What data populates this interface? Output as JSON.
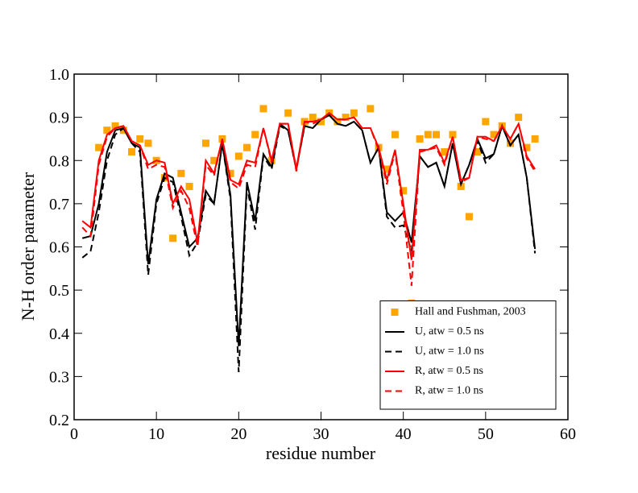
{
  "chart_data": {
    "type": "line",
    "xlabel": "residue number",
    "ylabel": "N-H order parameter",
    "xlim": [
      0,
      60
    ],
    "ylim": [
      0.2,
      1.0
    ],
    "xticks": [
      0,
      10,
      20,
      30,
      40,
      50,
      60
    ],
    "yticks": [
      0.2,
      0.3,
      0.4,
      0.5,
      0.6,
      0.7,
      0.8,
      0.9,
      {
        "value": 1.0,
        "label": "1.0"
      }
    ],
    "legend": "lower right",
    "series": [
      {
        "name": "Hall and Fushman, 2003",
        "color": "#ffa500",
        "style": "markers",
        "x": [
          3,
          4,
          5,
          6,
          7,
          8,
          9,
          10,
          11,
          12,
          13,
          14,
          16,
          17,
          18,
          19,
          20,
          21,
          22,
          23,
          24,
          26,
          28,
          29,
          30,
          31,
          32,
          33,
          34,
          36,
          37,
          38,
          39,
          40,
          41,
          42,
          43,
          44,
          45,
          46,
          47,
          48,
          49,
          50,
          51,
          52,
          53,
          54,
          55,
          56
        ],
        "values": [
          0.83,
          0.87,
          0.88,
          0.87,
          0.82,
          0.85,
          0.84,
          0.8,
          0.76,
          0.62,
          0.77,
          0.74,
          0.84,
          0.8,
          0.85,
          0.77,
          0.81,
          0.83,
          0.86,
          0.92,
          0.8,
          0.91,
          0.89,
          0.9,
          0.89,
          0.91,
          0.89,
          0.9,
          0.91,
          0.92,
          0.83,
          0.78,
          0.86,
          0.73,
          0.47,
          0.85,
          0.86,
          0.86,
          0.82,
          0.86,
          0.74,
          0.67,
          0.82,
          0.89,
          0.86,
          0.88,
          0.84,
          0.9,
          0.83,
          0.85
        ]
      },
      {
        "name": "U, atw = 0.5 ns",
        "color": "#000000",
        "style": "solid",
        "x": [
          1,
          2,
          3,
          4,
          5,
          6,
          7,
          8,
          9,
          10,
          11,
          12,
          13,
          14,
          15,
          16,
          17,
          18,
          19,
          20,
          21,
          22,
          23,
          24,
          25,
          26,
          27,
          28,
          29,
          30,
          31,
          32,
          33,
          34,
          35,
          36,
          37,
          38,
          39,
          40,
          41,
          42,
          43,
          44,
          45,
          46,
          47,
          48,
          49,
          50,
          51,
          52,
          53,
          54,
          55,
          56
        ],
        "values": [
          0.62,
          0.625,
          0.7,
          0.82,
          0.87,
          0.875,
          0.84,
          0.83,
          0.56,
          0.71,
          0.77,
          0.76,
          0.68,
          0.6,
          0.62,
          0.73,
          0.7,
          0.84,
          0.72,
          0.37,
          0.75,
          0.66,
          0.815,
          0.785,
          0.885,
          0.87,
          0.78,
          0.88,
          0.875,
          0.895,
          0.905,
          0.885,
          0.88,
          0.89,
          0.87,
          0.795,
          0.83,
          0.68,
          0.66,
          0.68,
          0.61,
          0.81,
          0.785,
          0.795,
          0.74,
          0.84,
          0.745,
          0.79,
          0.85,
          0.805,
          0.815,
          0.88,
          0.835,
          0.86,
          0.76,
          0.595
        ]
      },
      {
        "name": "U, atw = 1.0 ns",
        "color": "#000000",
        "style": "dashed",
        "x": [
          1,
          2,
          3,
          4,
          5,
          6,
          7,
          8,
          9,
          10,
          11,
          12,
          13,
          14,
          15,
          16,
          17,
          18,
          19,
          20,
          21,
          22,
          23,
          24,
          25,
          26,
          27,
          28,
          29,
          30,
          31,
          32,
          33,
          34,
          35,
          36,
          37,
          38,
          39,
          40,
          41,
          42,
          43,
          44,
          45,
          46,
          47,
          48,
          49,
          50,
          51,
          52,
          53,
          54,
          55,
          56
        ],
        "values": [
          0.575,
          0.59,
          0.68,
          0.8,
          0.86,
          0.875,
          0.84,
          0.82,
          0.535,
          0.7,
          0.76,
          0.75,
          0.67,
          0.58,
          0.61,
          0.72,
          0.7,
          0.84,
          0.71,
          0.31,
          0.74,
          0.64,
          0.81,
          0.78,
          0.88,
          0.87,
          0.78,
          0.88,
          0.875,
          0.895,
          0.905,
          0.885,
          0.88,
          0.89,
          0.87,
          0.795,
          0.83,
          0.67,
          0.645,
          0.65,
          0.59,
          0.81,
          0.785,
          0.795,
          0.74,
          0.84,
          0.745,
          0.79,
          0.845,
          0.795,
          0.815,
          0.88,
          0.835,
          0.86,
          0.76,
          0.585
        ]
      },
      {
        "name": "R, atw = 0.5 ns",
        "color": "#ff0000",
        "style": "solid",
        "x": [
          1,
          2,
          3,
          4,
          5,
          6,
          7,
          8,
          9,
          10,
          11,
          12,
          13,
          14,
          15,
          16,
          17,
          18,
          19,
          20,
          21,
          22,
          23,
          24,
          25,
          26,
          27,
          28,
          29,
          30,
          31,
          32,
          33,
          34,
          35,
          36,
          37,
          38,
          39,
          40,
          41,
          42,
          43,
          44,
          45,
          46,
          47,
          48,
          49,
          50,
          51,
          52,
          53,
          54,
          55,
          56
        ],
        "values": [
          0.66,
          0.645,
          0.8,
          0.86,
          0.875,
          0.88,
          0.845,
          0.835,
          0.79,
          0.8,
          0.795,
          0.7,
          0.74,
          0.71,
          0.61,
          0.8,
          0.77,
          0.85,
          0.755,
          0.745,
          0.8,
          0.795,
          0.875,
          0.8,
          0.885,
          0.885,
          0.78,
          0.89,
          0.89,
          0.895,
          0.91,
          0.895,
          0.895,
          0.9,
          0.875,
          0.875,
          0.83,
          0.755,
          0.825,
          0.7,
          0.57,
          0.825,
          0.825,
          0.835,
          0.795,
          0.855,
          0.755,
          0.76,
          0.855,
          0.855,
          0.845,
          0.88,
          0.85,
          0.885,
          0.81,
          0.78
        ]
      },
      {
        "name": "R, atw = 1.0 ns",
        "color": "#ff0000",
        "style": "dashed",
        "x": [
          1,
          2,
          3,
          4,
          5,
          6,
          7,
          8,
          9,
          10,
          11,
          12,
          13,
          14,
          15,
          16,
          17,
          18,
          19,
          20,
          21,
          22,
          23,
          24,
          25,
          26,
          27,
          28,
          29,
          30,
          31,
          32,
          33,
          34,
          35,
          36,
          37,
          38,
          39,
          40,
          41,
          42,
          43,
          44,
          45,
          46,
          47,
          48,
          49,
          50,
          51,
          52,
          53,
          54,
          55,
          56
        ],
        "values": [
          0.645,
          0.625,
          0.79,
          0.855,
          0.875,
          0.88,
          0.845,
          0.835,
          0.78,
          0.79,
          0.785,
          0.69,
          0.73,
          0.69,
          0.6,
          0.79,
          0.765,
          0.85,
          0.75,
          0.735,
          0.79,
          0.785,
          0.875,
          0.795,
          0.885,
          0.885,
          0.775,
          0.89,
          0.885,
          0.895,
          0.91,
          0.895,
          0.895,
          0.9,
          0.875,
          0.875,
          0.825,
          0.745,
          0.82,
          0.68,
          0.51,
          0.82,
          0.825,
          0.83,
          0.79,
          0.855,
          0.75,
          0.76,
          0.855,
          0.85,
          0.845,
          0.88,
          0.85,
          0.885,
          0.805,
          0.775
        ]
      }
    ]
  }
}
